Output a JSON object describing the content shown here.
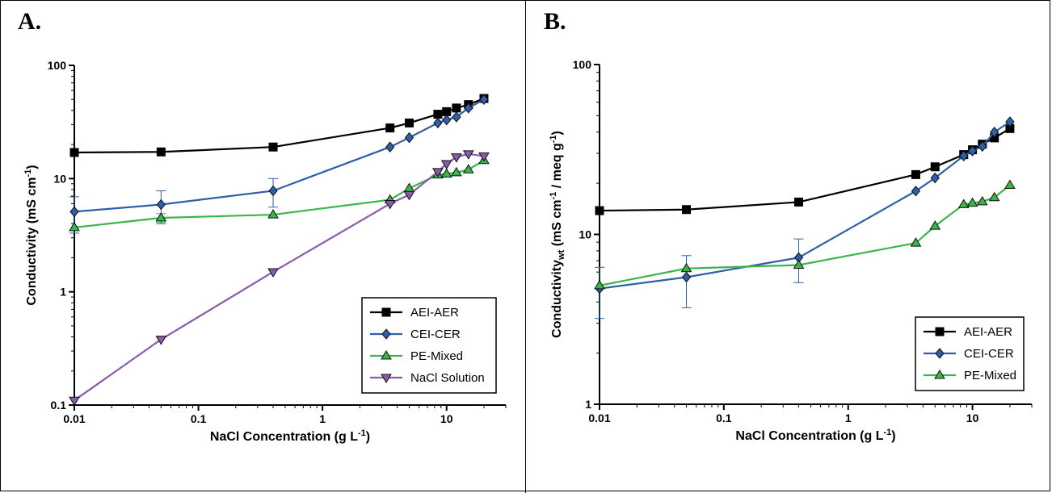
{
  "panels": [
    {
      "letter": "A.",
      "chart_data": {
        "type": "line",
        "xscale": "log",
        "yscale": "log",
        "xlim": [
          0.01,
          30
        ],
        "ylim": [
          0.1,
          100
        ],
        "xticks": [
          "0.01",
          "0.1",
          "1",
          "10"
        ],
        "yticks": [
          "0.1",
          "1",
          "10",
          "100"
        ],
        "xlabel": "NaCl Concentration (g L-1)",
        "ylabel": "Conductivity (mS cm-1)",
        "legend_position": "bottom-right",
        "series": [
          {
            "name": "AEI-AER",
            "color": "#000000",
            "marker": "square",
            "x": [
              0.01,
              0.05,
              0.4,
              3.5,
              5,
              8.5,
              10,
              12,
              15,
              20
            ],
            "y": [
              17,
              17.2,
              19,
              28,
              31,
              37,
              39,
              42,
              45,
              51
            ],
            "err": [
              0,
              0,
              0,
              0,
              0,
              0,
              0,
              0,
              0,
              0
            ]
          },
          {
            "name": "CEI-CER",
            "color": "#2e5fa8",
            "marker": "diamond",
            "x": [
              0.01,
              0.05,
              0.4,
              3.5,
              5,
              8.5,
              10,
              12,
              15,
              20
            ],
            "y": [
              5.1,
              5.9,
              7.8,
              19,
              23,
              31,
              33,
              35,
              42,
              50
            ],
            "err": [
              1.8,
              1.9,
              2.2,
              0,
              0,
              0,
              0,
              0,
              0,
              0
            ]
          },
          {
            "name": "PE-Mixed",
            "color": "#39b54a",
            "marker": "triangle-up",
            "x": [
              0.01,
              0.05,
              0.4,
              3.5,
              5,
              8.5,
              10,
              12,
              15,
              20
            ],
            "y": [
              3.7,
              4.5,
              4.8,
              6.5,
              8.2,
              10.8,
              11,
              11.3,
              12,
              14.5
            ],
            "err": [
              0,
              0.4,
              0,
              0,
              0,
              0,
              0,
              0,
              0,
              0
            ]
          },
          {
            "name": "NaCl Solution",
            "color": "#8a5bab",
            "marker": "triangle-down",
            "x": [
              0.01,
              0.05,
              0.4,
              3.5,
              5,
              8.5,
              10,
              12,
              15,
              20
            ],
            "y": [
              0.11,
              0.38,
              1.5,
              6,
              7.2,
              11.5,
              13.5,
              15.5,
              16.5,
              15.8
            ],
            "err": [
              0,
              0,
              0,
              0,
              0,
              0,
              0,
              0,
              0,
              0
            ]
          }
        ]
      }
    },
    {
      "letter": "B.",
      "chart_data": {
        "type": "line",
        "xscale": "log",
        "yscale": "log",
        "xlim": [
          0.01,
          30
        ],
        "ylim": [
          1,
          100
        ],
        "xticks": [
          "0.01",
          "0.1",
          "1",
          "10"
        ],
        "yticks": [
          "1",
          "10",
          "100"
        ],
        "xlabel": "NaCl Concentration (g L-1)",
        "ylabel": "Conductivitywt (mS cm-1 / meq g-1)",
        "legend_position": "bottom-right",
        "series": [
          {
            "name": "AEI-AER",
            "color": "#000000",
            "marker": "square",
            "x": [
              0.01,
              0.05,
              0.4,
              3.5,
              5,
              8.5,
              10,
              12,
              15,
              20
            ],
            "y": [
              13.8,
              14,
              15.5,
              22.5,
              25,
              29.5,
              31.5,
              34,
              37,
              42
            ],
            "err": [
              0,
              0,
              0,
              0,
              0,
              0,
              0,
              0,
              0,
              0
            ]
          },
          {
            "name": "CEI-CER",
            "color": "#2e5fa8",
            "marker": "diamond",
            "x": [
              0.01,
              0.05,
              0.4,
              3.5,
              5,
              8.5,
              10,
              12,
              15,
              20
            ],
            "y": [
              4.8,
              5.6,
              7.3,
              18,
              21.5,
              29,
              31,
              33,
              40,
              46
            ],
            "err": [
              1.6,
              1.9,
              2.1,
              0,
              0,
              0,
              0,
              0,
              0,
              0
            ]
          },
          {
            "name": "PE-Mixed",
            "color": "#39b54a",
            "marker": "triangle-up",
            "x": [
              0.01,
              0.05,
              0.4,
              3.5,
              5,
              8.5,
              10,
              12,
              15,
              20
            ],
            "y": [
              5,
              6.3,
              6.6,
              8.9,
              11.2,
              15,
              15.3,
              15.6,
              16.5,
              19.5
            ],
            "err": [
              0,
              0,
              0,
              0,
              0,
              0,
              0,
              0,
              0,
              0
            ]
          }
        ]
      }
    }
  ]
}
